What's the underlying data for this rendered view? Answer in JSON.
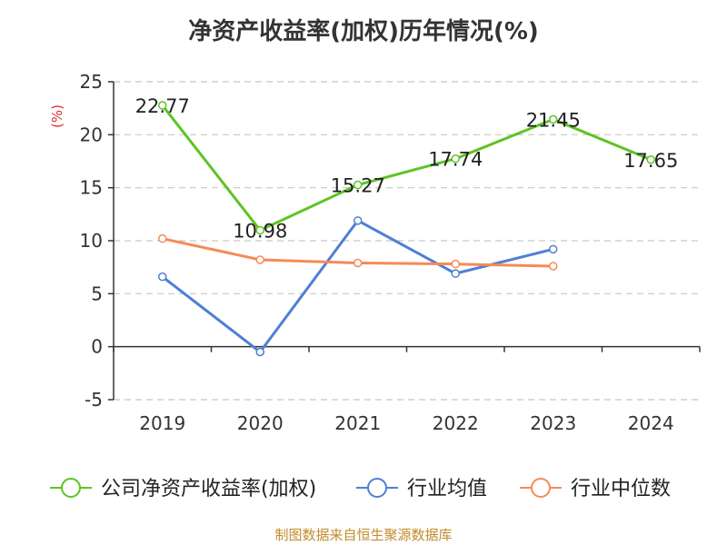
{
  "chart_data": {
    "type": "line",
    "title": "净资产收益率(加权)历年情况(%)",
    "ylabel": "(%)",
    "xlabel": "",
    "categories": [
      "2019",
      "2020",
      "2021",
      "2022",
      "2023",
      "2024"
    ],
    "ylim": [
      -5,
      25
    ],
    "yticks": [
      -5,
      0,
      5,
      10,
      15,
      20,
      25
    ],
    "grid": true,
    "legend_position": "bottom",
    "series": [
      {
        "name": "公司净资产收益率(加权)",
        "color": "#5cc423",
        "values": [
          22.77,
          10.98,
          15.27,
          17.74,
          21.45,
          17.65
        ],
        "labels": [
          "22.77",
          "10.98",
          "15.27",
          "17.74",
          "21.45",
          "17.65"
        ]
      },
      {
        "name": "行业均值",
        "color": "#4e7fd6",
        "values": [
          6.6,
          -0.5,
          11.9,
          6.9,
          9.2,
          null
        ]
      },
      {
        "name": "行业中位数",
        "color": "#f58b55",
        "values": [
          10.2,
          8.2,
          7.9,
          7.8,
          7.6,
          null
        ]
      }
    ]
  },
  "footer": {
    "source": "制图数据来自恒生聚源数据库"
  }
}
